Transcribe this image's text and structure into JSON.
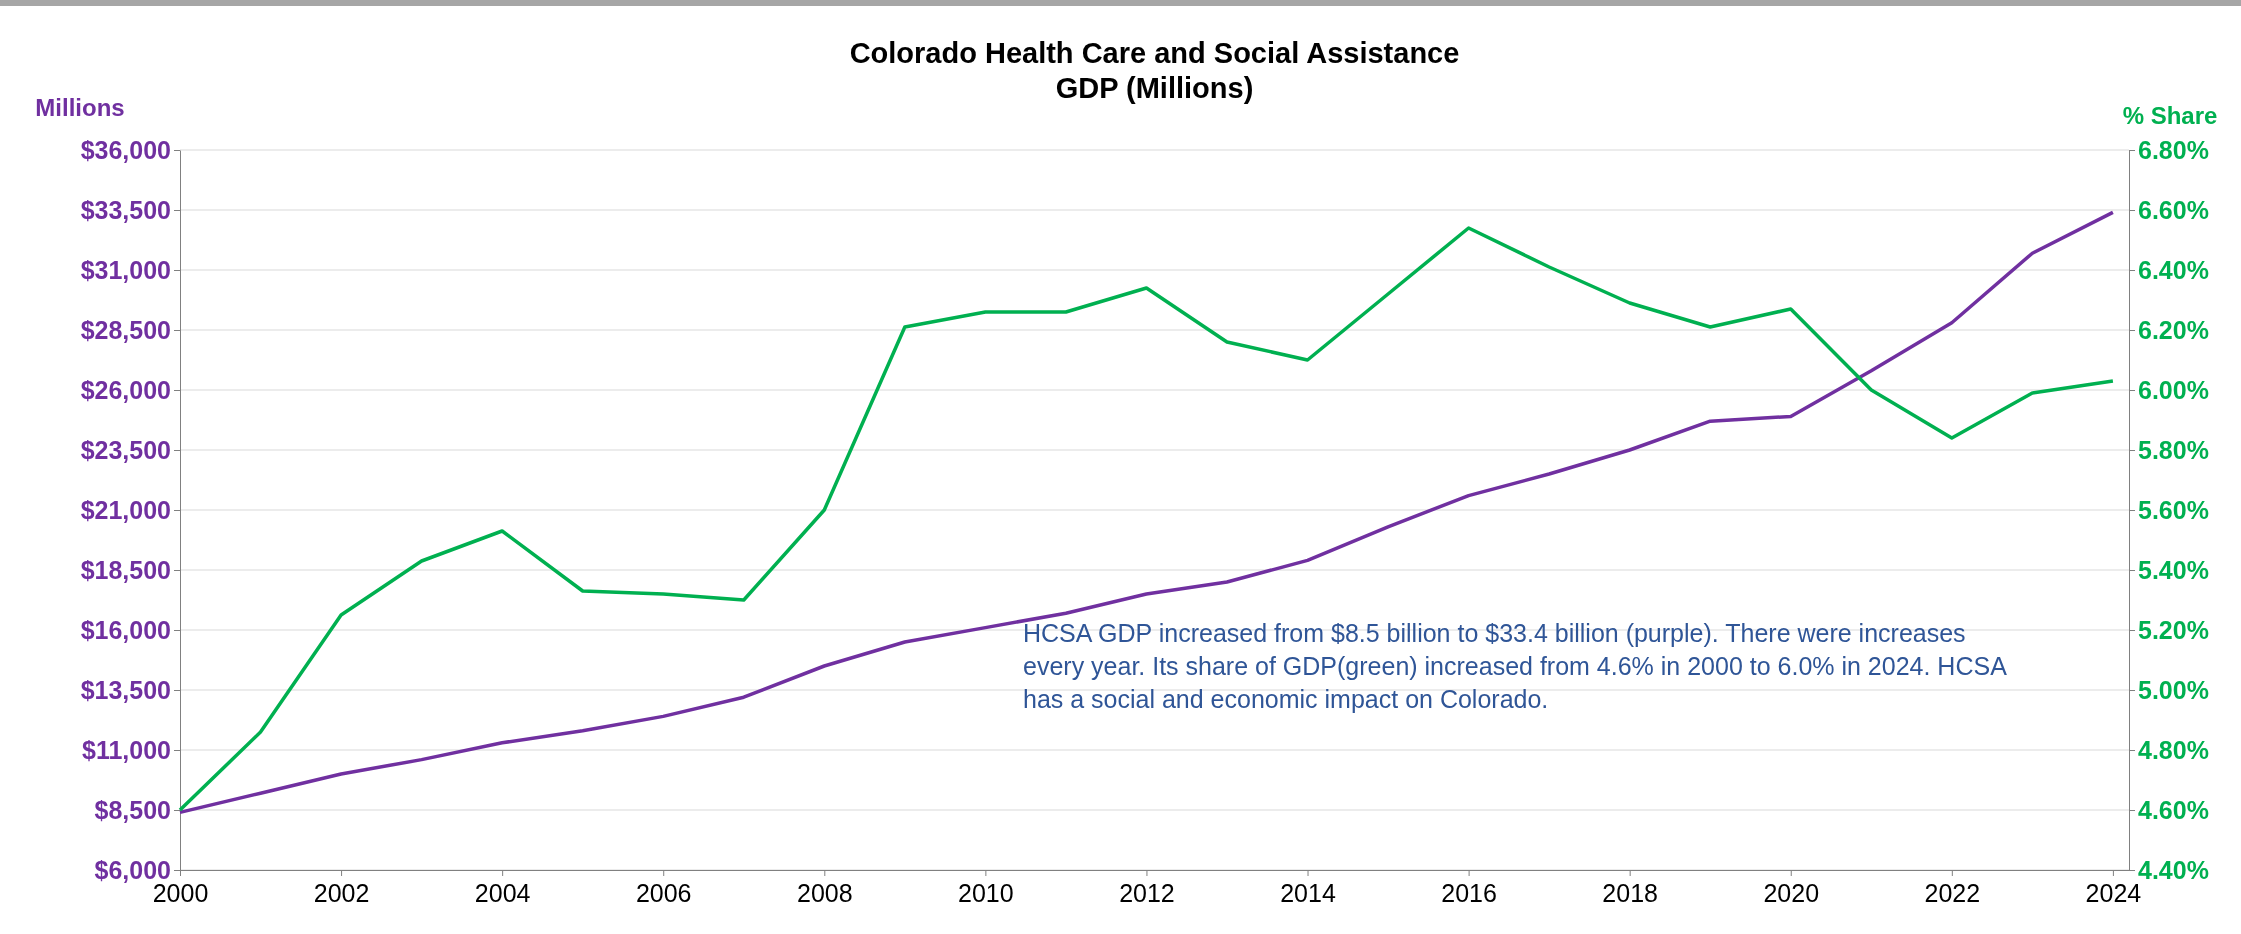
{
  "chart_data": {
    "type": "line",
    "title": "Colorado Health Care and Social Assistance\nGDP (Millions)",
    "ylabel": "Millions",
    "y2label": "% Share",
    "x": [
      2000,
      2001,
      2002,
      2003,
      2004,
      2005,
      2006,
      2007,
      2008,
      2009,
      2010,
      2011,
      2012,
      2013,
      2014,
      2015,
      2016,
      2017,
      2018,
      2019,
      2020,
      2021,
      2022,
      2023,
      2024
    ],
    "xlim": [
      2000,
      2024.2
    ],
    "xticks": [
      2000,
      2002,
      2004,
      2006,
      2008,
      2010,
      2012,
      2014,
      2016,
      2018,
      2020,
      2022,
      2024
    ],
    "ylim": [
      6000,
      36000
    ],
    "yticks": [
      {
        "value": 6000,
        "label": "$6,000"
      },
      {
        "value": 8500,
        "label": "$8,500"
      },
      {
        "value": 11000,
        "label": "$11,000"
      },
      {
        "value": 13500,
        "label": "$13,500"
      },
      {
        "value": 16000,
        "label": "$16,000"
      },
      {
        "value": 18500,
        "label": "$18,500"
      },
      {
        "value": 21000,
        "label": "$21,000"
      },
      {
        "value": 23500,
        "label": "$23,500"
      },
      {
        "value": 26000,
        "label": "$26,000"
      },
      {
        "value": 28500,
        "label": "$28,500"
      },
      {
        "value": 31000,
        "label": "$31,000"
      },
      {
        "value": 33500,
        "label": "$33,500"
      },
      {
        "value": 36000,
        "label": "$36,000"
      }
    ],
    "y2lim": [
      4.4,
      6.8
    ],
    "y2ticks": [
      {
        "value": 4.4,
        "label": "4.40%"
      },
      {
        "value": 4.6,
        "label": "4.60%"
      },
      {
        "value": 4.8,
        "label": "4.80%"
      },
      {
        "value": 5.0,
        "label": "5.00%"
      },
      {
        "value": 5.2,
        "label": "5.20%"
      },
      {
        "value": 5.4,
        "label": "5.40%"
      },
      {
        "value": 5.6,
        "label": "5.60%"
      },
      {
        "value": 5.8,
        "label": "5.80%"
      },
      {
        "value": 6.0,
        "label": "6.00%"
      },
      {
        "value": 6.2,
        "label": "6.20%"
      },
      {
        "value": 6.4,
        "label": "6.40%"
      },
      {
        "value": 6.6,
        "label": "6.60%"
      },
      {
        "value": 6.8,
        "label": "6.80%"
      }
    ],
    "grid": "y",
    "marker": "none",
    "line_style": "solid",
    "series": [
      {
        "color": "#7030a0",
        "values": [
          8400,
          9200,
          10000,
          10600,
          11300,
          11800,
          12400,
          13200,
          14500,
          15500,
          16100,
          16700,
          17500,
          18000,
          18900,
          20300,
          21600,
          22500,
          23500,
          24700,
          24900,
          26800,
          28800,
          31700,
          33400
        ]
      },
      {
        "color": "#00b050",
        "axis": "y2",
        "values": [
          4.6,
          4.86,
          5.25,
          5.43,
          5.53,
          5.33,
          5.32,
          5.3,
          5.6,
          6.21,
          6.26,
          6.26,
          6.34,
          6.16,
          6.1,
          6.32,
          6.54,
          6.41,
          6.29,
          6.21,
          6.27,
          6.0,
          5.84,
          5.99,
          6.03
        ]
      }
    ],
    "annotations": [
      "HCSA GDP increased from $8.5 billion to $33.4 billion (purple). There were increases every year. Its share of GDP(green) increased from 4.6% in 2000 to 6.0% in 2024. HCSA has a social and economic impact on Colorado."
    ]
  }
}
